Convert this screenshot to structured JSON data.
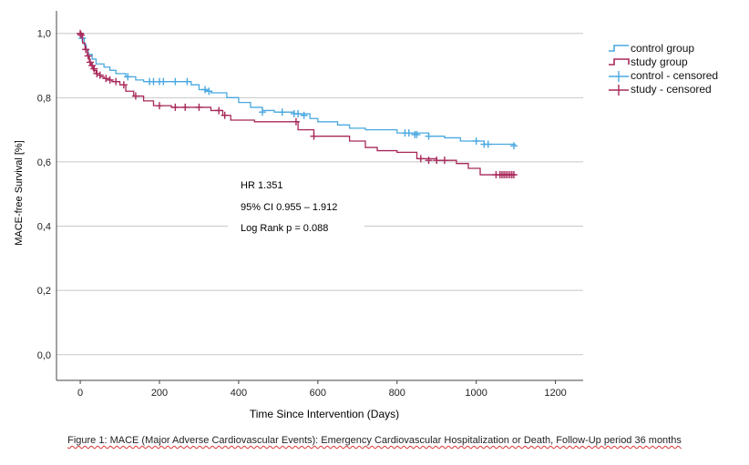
{
  "chart_data": {
    "type": "line",
    "subtype": "kaplan-meier",
    "xlabel": "Time Since Intervention (Days)",
    "ylabel": "MACE-free Survival [%]",
    "xlim": [
      -60,
      1270
    ],
    "ylim": [
      -0.08,
      1.07
    ],
    "xticks": [
      0,
      200,
      400,
      600,
      800,
      1000,
      1200
    ],
    "yticks": [
      0.0,
      0.2,
      0.4,
      0.6,
      0.8,
      1.0
    ],
    "ytick_labels": [
      "0,0",
      "0,2",
      "0,4",
      "0,6",
      "0,8",
      "1,0"
    ],
    "grid": "horizontal",
    "legend_position": "right",
    "series": [
      {
        "name": "control group",
        "color": "#4aa8e0",
        "steps": [
          [
            0,
            1.0
          ],
          [
            5,
            0.985
          ],
          [
            10,
            0.965
          ],
          [
            15,
            0.95
          ],
          [
            20,
            0.935
          ],
          [
            30,
            0.92
          ],
          [
            40,
            0.905
          ],
          [
            60,
            0.895
          ],
          [
            75,
            0.885
          ],
          [
            90,
            0.875
          ],
          [
            115,
            0.865
          ],
          [
            140,
            0.855
          ],
          [
            160,
            0.85
          ],
          [
            280,
            0.84
          ],
          [
            300,
            0.825
          ],
          [
            320,
            0.82
          ],
          [
            330,
            0.815
          ],
          [
            370,
            0.8
          ],
          [
            400,
            0.785
          ],
          [
            430,
            0.77
          ],
          [
            460,
            0.76
          ],
          [
            490,
            0.755
          ],
          [
            540,
            0.75
          ],
          [
            580,
            0.735
          ],
          [
            600,
            0.725
          ],
          [
            650,
            0.715
          ],
          [
            680,
            0.705
          ],
          [
            720,
            0.7
          ],
          [
            800,
            0.69
          ],
          [
            880,
            0.68
          ],
          [
            920,
            0.675
          ],
          [
            960,
            0.665
          ],
          [
            1020,
            0.655
          ],
          [
            1100,
            0.655
          ]
        ],
        "censored": [
          [
            5,
            0.985
          ],
          [
            120,
            0.865
          ],
          [
            175,
            0.85
          ],
          [
            185,
            0.85
          ],
          [
            200,
            0.85
          ],
          [
            210,
            0.85
          ],
          [
            240,
            0.85
          ],
          [
            270,
            0.85
          ],
          [
            315,
            0.825
          ],
          [
            325,
            0.82
          ],
          [
            460,
            0.755
          ],
          [
            510,
            0.755
          ],
          [
            540,
            0.75
          ],
          [
            550,
            0.75
          ],
          [
            565,
            0.745
          ],
          [
            820,
            0.69
          ],
          [
            830,
            0.69
          ],
          [
            845,
            0.685
          ],
          [
            850,
            0.685
          ],
          [
            880,
            0.68
          ],
          [
            1000,
            0.665
          ],
          [
            1020,
            0.655
          ],
          [
            1030,
            0.655
          ],
          [
            1095,
            0.65
          ]
        ]
      },
      {
        "name": "study group",
        "color": "#a8285a",
        "steps": [
          [
            0,
            1.0
          ],
          [
            6,
            0.97
          ],
          [
            12,
            0.95
          ],
          [
            18,
            0.93
          ],
          [
            23,
            0.91
          ],
          [
            28,
            0.9
          ],
          [
            33,
            0.885
          ],
          [
            40,
            0.875
          ],
          [
            50,
            0.865
          ],
          [
            60,
            0.86
          ],
          [
            70,
            0.855
          ],
          [
            80,
            0.85
          ],
          [
            100,
            0.84
          ],
          [
            115,
            0.82
          ],
          [
            135,
            0.805
          ],
          [
            160,
            0.79
          ],
          [
            185,
            0.775
          ],
          [
            230,
            0.77
          ],
          [
            330,
            0.76
          ],
          [
            360,
            0.745
          ],
          [
            380,
            0.73
          ],
          [
            440,
            0.725
          ],
          [
            550,
            0.7
          ],
          [
            590,
            0.68
          ],
          [
            680,
            0.665
          ],
          [
            720,
            0.645
          ],
          [
            750,
            0.635
          ],
          [
            800,
            0.63
          ],
          [
            850,
            0.61
          ],
          [
            900,
            0.605
          ],
          [
            950,
            0.595
          ],
          [
            980,
            0.58
          ],
          [
            1010,
            0.56
          ],
          [
            1100,
            0.56
          ]
        ],
        "censored": [
          [
            0,
            1.0
          ],
          [
            2,
            0.995
          ],
          [
            14,
            0.95
          ],
          [
            20,
            0.93
          ],
          [
            25,
            0.91
          ],
          [
            30,
            0.9
          ],
          [
            35,
            0.89
          ],
          [
            42,
            0.875
          ],
          [
            50,
            0.87
          ],
          [
            65,
            0.86
          ],
          [
            75,
            0.855
          ],
          [
            90,
            0.85
          ],
          [
            110,
            0.84
          ],
          [
            140,
            0.805
          ],
          [
            200,
            0.775
          ],
          [
            240,
            0.77
          ],
          [
            265,
            0.77
          ],
          [
            300,
            0.77
          ],
          [
            350,
            0.76
          ],
          [
            365,
            0.745
          ],
          [
            545,
            0.725
          ],
          [
            590,
            0.68
          ],
          [
            860,
            0.61
          ],
          [
            880,
            0.605
          ],
          [
            900,
            0.605
          ],
          [
            920,
            0.605
          ],
          [
            1050,
            0.56
          ],
          [
            1060,
            0.56
          ],
          [
            1065,
            0.56
          ],
          [
            1070,
            0.56
          ],
          [
            1075,
            0.56
          ],
          [
            1080,
            0.56
          ],
          [
            1085,
            0.56
          ],
          [
            1090,
            0.56
          ],
          [
            1095,
            0.56
          ]
        ]
      }
    ],
    "legend_entries": [
      "control group",
      "study group",
      "control - censored",
      "study - censored"
    ],
    "annotations": [
      "HR 1.351",
      "95% CI 0.955 – 1.912",
      "Log Rank p = 0.088"
    ]
  },
  "caption": "Figure 1: MACE (Major Adverse Cardiovascular Events): Emergency Cardiovascular Hospitalization or Death, Follow-Up period 36 months",
  "grid_color": "#c8c8c8"
}
